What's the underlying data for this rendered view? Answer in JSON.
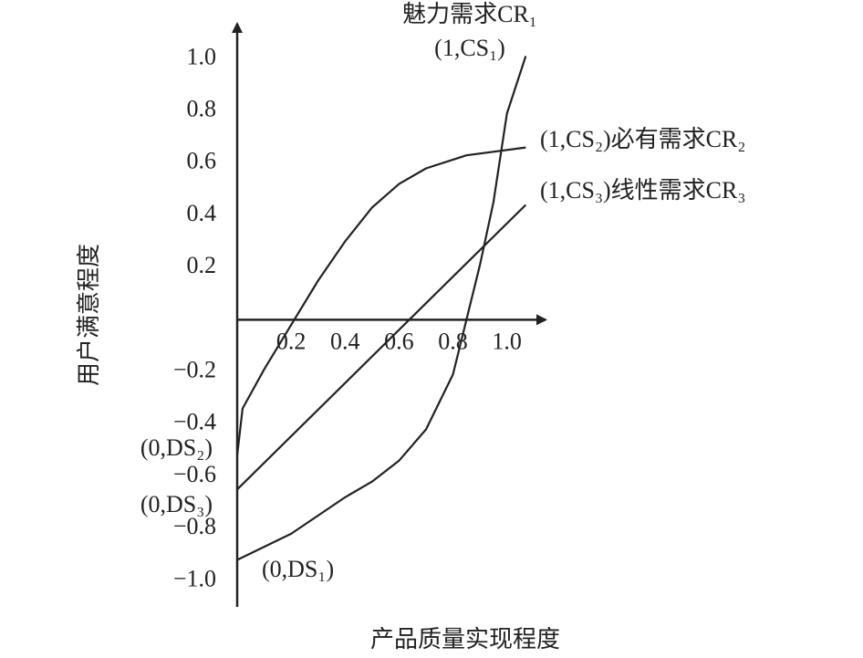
{
  "chart_data": {
    "type": "line",
    "x_label": "产品质量实现程度",
    "y_label": "用户满意程度",
    "xlim": [
      0,
      1.15
    ],
    "ylim": [
      -1.1,
      1.12
    ],
    "xticks": [
      0.2,
      0.4,
      0.6,
      0.8,
      {
        "value": 1,
        "label": "1.0"
      }
    ],
    "yticks": [
      {
        "value": -1,
        "label": "−1.0"
      },
      {
        "value": -0.8,
        "label": "−0.8"
      },
      {
        "value": -0.6,
        "label": "−0.6"
      },
      {
        "value": -0.4,
        "label": "−0.4"
      },
      {
        "value": -0.2,
        "label": "−0.2"
      },
      0.2,
      0.4,
      0.6,
      0.8,
      {
        "value": 1,
        "label": "1.0"
      }
    ],
    "series": [
      {
        "color": "#222222",
        "x": [
          0,
          0.2,
          0.4,
          0.5,
          0.6,
          0.7,
          0.8,
          0.9,
          0.95,
          1,
          1.07
        ],
        "values": [
          -0.92,
          -0.82,
          -0.68,
          -0.62,
          -0.54,
          -0.42,
          -0.21,
          0.21,
          0.45,
          0.79,
          1.01
        ]
      },
      {
        "color": "#222222",
        "x": [
          0,
          0.02,
          0.1,
          0.2,
          0.3,
          0.4,
          0.5,
          0.6,
          0.7,
          0.85,
          1.07
        ],
        "values": [
          -0.52,
          -0.34,
          -0.19,
          -0.02,
          0.15,
          0.3,
          0.43,
          0.52,
          0.58,
          0.63,
          0.66
        ]
      },
      {
        "color": "#222222",
        "x": [
          0,
          1.07
        ],
        "values": [
          -0.65,
          0.44
        ]
      }
    ],
    "annotations": [
      "魅力需求CR₁",
      "(1,CS₁)",
      "(1,CS₂)必有需求CR₂",
      "(1,CS₃)线性需求CR₃",
      "(0,DS₂)",
      "(0,DS₃)",
      "(0,DS₁)"
    ]
  }
}
